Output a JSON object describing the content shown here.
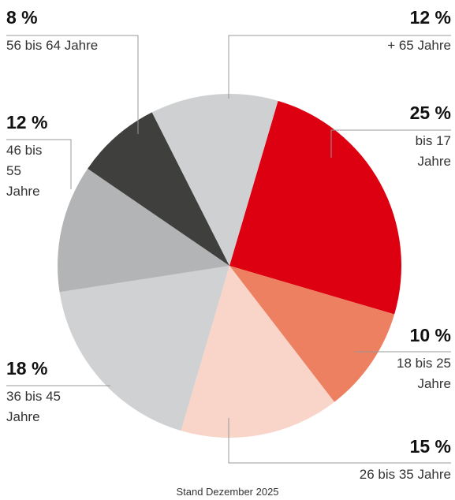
{
  "chart_data": {
    "type": "pie",
    "categories": [
      "bis 17 Jahre",
      "18 bis 25 Jahre",
      "26 bis 35 Jahre",
      "36 bis 45 Jahre",
      "46 bis 55 Jahre",
      "56 bis 64 Jahre",
      "+ 65 Jahre"
    ],
    "values": [
      25,
      10,
      15,
      18,
      12,
      8,
      12
    ],
    "value_labels": [
      "25 %",
      "10 %",
      "15 %",
      "18 %",
      "12 %",
      "8 %",
      "12 %"
    ],
    "colors": [
      "#dc0010",
      "#ec8060",
      "#f8d5c8",
      "#d0d1d2",
      "#b3b4b5",
      "#3f3f3d",
      "#cfd0d1"
    ],
    "note": "Stand Dezember 2025"
  }
}
